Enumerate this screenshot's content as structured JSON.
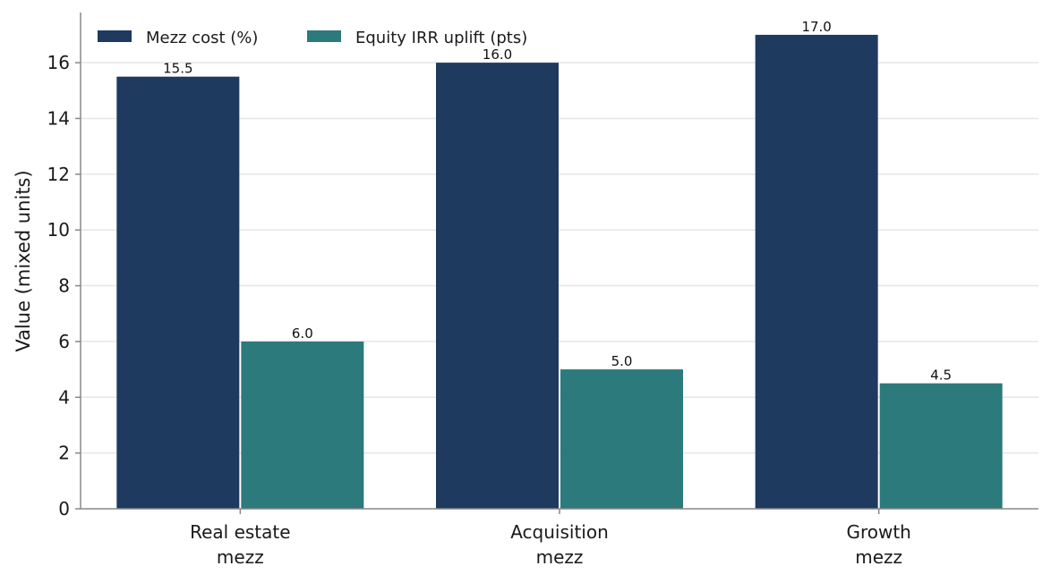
{
  "chart_data": {
    "type": "bar",
    "title": "",
    "xlabel": "",
    "ylabel": "Value (mixed units)",
    "categories": [
      [
        "Real estate",
        "mezz"
      ],
      [
        "Acquisition",
        "mezz"
      ],
      [
        "Growth",
        "mezz"
      ]
    ],
    "series": [
      {
        "name": "Mezz cost (%)",
        "values": [
          15.5,
          16.0,
          17.0
        ],
        "labels": [
          "15.5",
          "16.0",
          "17.0"
        ],
        "color": "#1f3a5f"
      },
      {
        "name": "Equity IRR uplift (pts)",
        "values": [
          6.0,
          5.0,
          4.5
        ],
        "labels": [
          "6.0",
          "5.0",
          "4.5"
        ],
        "color": "#2c7a7b"
      }
    ],
    "ylim": [
      0,
      17.8
    ],
    "yticks": [
      0,
      2,
      4,
      6,
      8,
      10,
      12,
      14,
      16
    ],
    "grid": "horizontal",
    "legend_position": "top-left"
  }
}
